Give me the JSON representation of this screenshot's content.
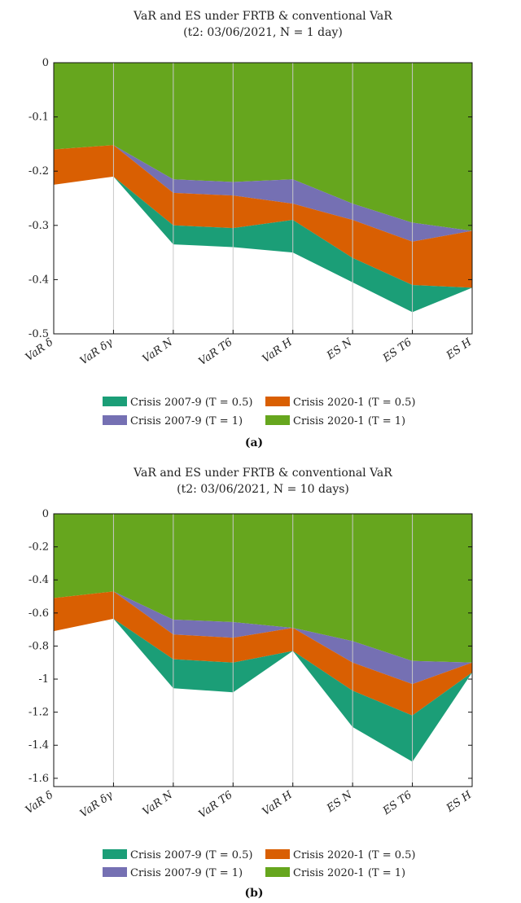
{
  "colors": {
    "crisis_2007_9_T05": "#1b9e77",
    "crisis_2020_1_T05": "#d95f02",
    "crisis_2007_9_T1": "#7570b3",
    "crisis_2020_1_T1": "#66a61e"
  },
  "chart_data": [
    {
      "type": "area",
      "title": "VaR and ES under FRTB & conventional VaR",
      "subtitle": "(t2: 03/06/2021, N = 1 day)",
      "caption": "(a)",
      "categories": [
        "VaR δ",
        "VaR δγ",
        "VaR N",
        "VaR T6",
        "VaR H",
        "ES N",
        "ES T6",
        "ES H"
      ],
      "ylim": [
        -0.5,
        0
      ],
      "yticks": [
        0,
        -0.1,
        -0.2,
        -0.3,
        -0.4,
        -0.5
      ],
      "ytick_labels": [
        "0",
        "-0.1",
        "-0.2",
        "-0.3",
        "-0.4",
        "-0.5"
      ],
      "grid": "vertical",
      "legend": "bottom",
      "series": [
        {
          "name": "Crisis 2007-9 (T = 0.5)",
          "color": "#1b9e77",
          "values": [
            -0.225,
            -0.21,
            -0.335,
            -0.34,
            -0.35,
            -0.405,
            -0.46,
            -0.41
          ]
        },
        {
          "name": "Crisis 2020-1 (T = 0.5)",
          "color": "#d95f02",
          "values": [
            -0.225,
            -0.21,
            -0.3,
            -0.305,
            -0.29,
            -0.36,
            -0.41,
            -0.415
          ]
        },
        {
          "name": "Crisis 2007-9 (T = 1)",
          "color": "#7570b3",
          "values": [
            -0.16,
            -0.152,
            -0.24,
            -0.245,
            -0.26,
            -0.29,
            -0.33,
            -0.31
          ]
        },
        {
          "name": "Crisis 2020-1 (T = 1)",
          "color": "#66a61e",
          "values": [
            -0.16,
            -0.152,
            -0.215,
            -0.22,
            -0.215,
            -0.26,
            -0.295,
            -0.31
          ]
        }
      ]
    },
    {
      "type": "area",
      "title": "VaR and ES under FRTB & conventional VaR",
      "subtitle": "(t2: 03/06/2021, N = 10 days)",
      "caption": "(b)",
      "categories": [
        "VaR δ",
        "VaR δγ",
        "VaR N",
        "VaR T6",
        "VaR H",
        "ES N",
        "ES T6",
        "ES H"
      ],
      "ylim": [
        -1.65,
        0
      ],
      "yticks": [
        0,
        -0.2,
        -0.4,
        -0.6,
        -0.8,
        -1,
        -1.2,
        -1.4,
        -1.6
      ],
      "ytick_labels": [
        "0",
        "-0.2",
        "-0.4",
        "-0.6",
        "-0.8",
        "-1",
        "-1.2",
        "-1.4",
        "-1.6"
      ],
      "grid": "vertical",
      "legend": "bottom",
      "series": [
        {
          "name": "Crisis 2007-9 (T = 0.5)",
          "color": "#1b9e77",
          "values": [
            -0.71,
            -0.635,
            -1.055,
            -1.08,
            -0.83,
            -1.29,
            -1.5,
            -0.96
          ]
        },
        {
          "name": "Crisis 2020-1 (T = 0.5)",
          "color": "#d95f02",
          "values": [
            -0.71,
            -0.635,
            -0.88,
            -0.9,
            -0.83,
            -1.07,
            -1.22,
            -0.96
          ]
        },
        {
          "name": "Crisis 2007-9 (T = 1)",
          "color": "#7570b3",
          "values": [
            -0.51,
            -0.47,
            -0.73,
            -0.75,
            -0.69,
            -0.9,
            -1.03,
            -0.9
          ]
        },
        {
          "name": "Crisis 2020-1 (T = 1)",
          "color": "#66a61e",
          "values": [
            -0.51,
            -0.47,
            -0.64,
            -0.655,
            -0.69,
            -0.77,
            -0.89,
            -0.9
          ]
        }
      ]
    }
  ]
}
